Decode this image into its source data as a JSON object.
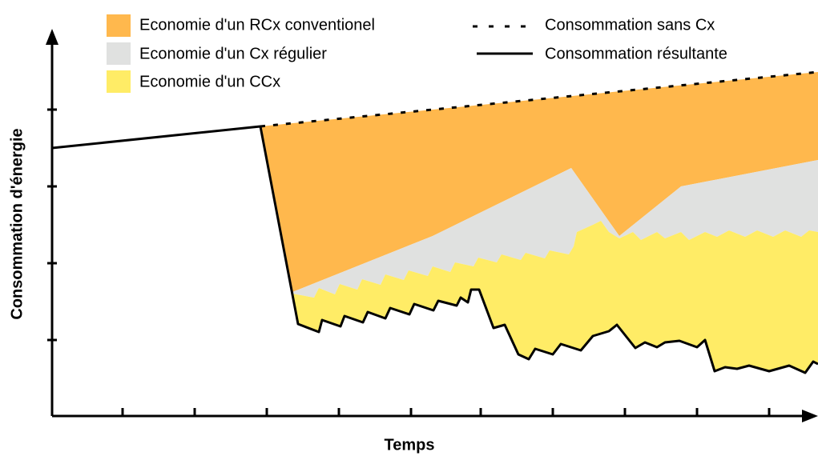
{
  "axes": {
    "x_label": "Temps",
    "y_label": "Consommation d'énergie"
  },
  "legend": {
    "areas": [
      "Economie d'un RCx conventionel",
      "Economie d'un Cx régulier",
      "Economie d'un CCx"
    ],
    "lines": [
      "Consommation sans Cx",
      "Consommation résultante"
    ]
  }
}
